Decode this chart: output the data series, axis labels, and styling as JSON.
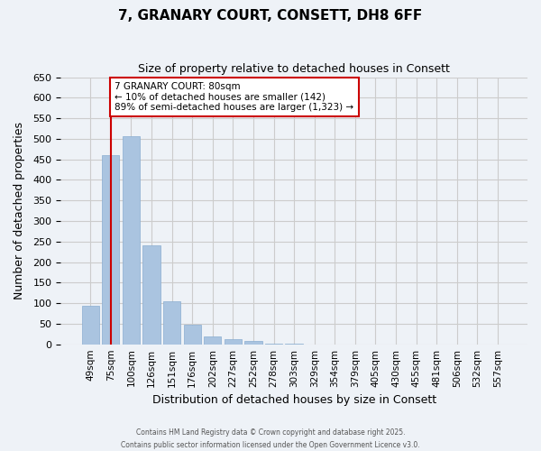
{
  "title": "7, GRANARY COURT, CONSETT, DH8 6FF",
  "subtitle": "Size of property relative to detached houses in Consett",
  "xlabel": "Distribution of detached houses by size in Consett",
  "ylabel": "Number of detached properties",
  "bin_labels": [
    "49sqm",
    "75sqm",
    "100sqm",
    "126sqm",
    "151sqm",
    "176sqm",
    "202sqm",
    "227sqm",
    "252sqm",
    "278sqm",
    "303sqm",
    "329sqm",
    "354sqm",
    "379sqm",
    "405sqm",
    "430sqm",
    "455sqm",
    "481sqm",
    "506sqm",
    "532sqm",
    "557sqm"
  ],
  "bar_values": [
    93,
    460,
    507,
    240,
    104,
    48,
    20,
    13,
    8,
    2,
    1,
    0,
    0,
    0,
    0,
    0,
    0,
    0,
    0,
    0,
    0
  ],
  "bar_color": "#aac4e0",
  "bar_edge_color": "#8aadd0",
  "grid_color": "#cccccc",
  "bg_color": "#eef2f7",
  "vline_x": 1,
  "vline_color": "#cc0000",
  "annotation_title": "7 GRANARY COURT: 80sqm",
  "annotation_line1": "← 10% of detached houses are smaller (142)",
  "annotation_line2": "89% of semi-detached houses are larger (1,323) →",
  "annotation_box_color": "#cc0000",
  "ylim": [
    0,
    650
  ],
  "yticks": [
    0,
    50,
    100,
    150,
    200,
    250,
    300,
    350,
    400,
    450,
    500,
    550,
    600,
    650
  ],
  "footer1": "Contains HM Land Registry data © Crown copyright and database right 2025.",
  "footer2": "Contains public sector information licensed under the Open Government Licence v3.0."
}
